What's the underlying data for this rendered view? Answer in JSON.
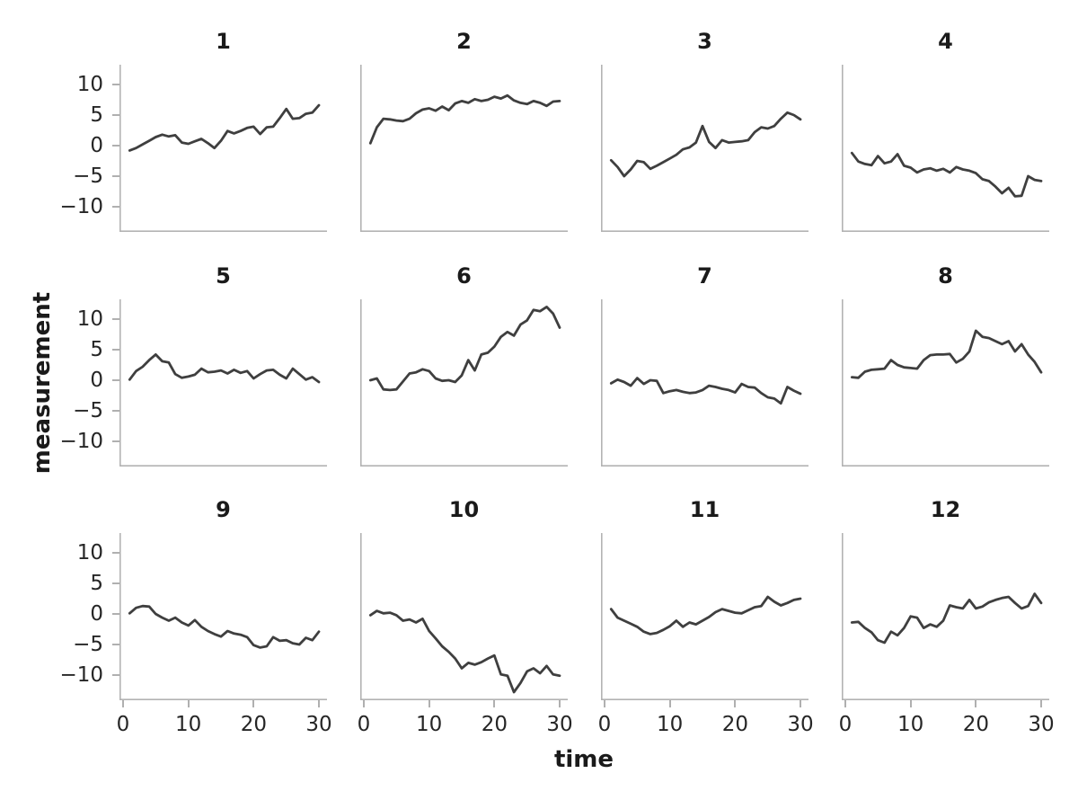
{
  "figure": {
    "xlabel": "time",
    "ylabel": "measurement"
  },
  "chart_data": {
    "type": "line",
    "facet_layout": {
      "rows": 3,
      "cols": 4
    },
    "title": "",
    "xlabel": "time",
    "ylabel": "measurement",
    "x": [
      1,
      2,
      3,
      4,
      5,
      6,
      7,
      8,
      9,
      10,
      11,
      12,
      13,
      14,
      15,
      16,
      17,
      18,
      19,
      20,
      21,
      22,
      23,
      24,
      25,
      26,
      27,
      28,
      29,
      30
    ],
    "xticks": [
      0,
      10,
      20,
      30
    ],
    "yticks": [
      10,
      5,
      0,
      -5,
      -10
    ],
    "xlim": [
      -0.6,
      31.2
    ],
    "ylim": [
      -14.0,
      13.3
    ],
    "grid": false,
    "legend": "none",
    "line_color": "#3f3f3f",
    "spine_color": "#b3b3b3",
    "text_color": "#262626",
    "facets": [
      {
        "title": "1",
        "values": [
          -0.8,
          -0.4,
          0.2,
          0.8,
          1.4,
          1.8,
          1.5,
          1.7,
          0.5,
          0.3,
          0.7,
          1.1,
          0.4,
          -0.4,
          0.8,
          2.4,
          2.0,
          2.4,
          2.9,
          3.1,
          1.9,
          3.0,
          3.1,
          4.5,
          6.0,
          4.4,
          4.5,
          5.2,
          5.4,
          6.6
        ]
      },
      {
        "title": "2",
        "values": [
          0.4,
          3.0,
          4.4,
          4.3,
          4.1,
          4.0,
          4.4,
          5.3,
          5.9,
          6.1,
          5.7,
          6.4,
          5.8,
          6.9,
          7.3,
          7.0,
          7.6,
          7.3,
          7.5,
          8.0,
          7.7,
          8.2,
          7.4,
          7.0,
          6.8,
          7.3,
          7.0,
          6.5,
          7.2,
          7.3
        ]
      },
      {
        "title": "3",
        "values": [
          -2.4,
          -3.5,
          -5.0,
          -3.9,
          -2.5,
          -2.7,
          -3.8,
          -3.3,
          -2.7,
          -2.1,
          -1.5,
          -0.6,
          -0.3,
          0.5,
          3.2,
          0.6,
          -0.4,
          0.9,
          0.5,
          0.6,
          0.7,
          0.9,
          2.2,
          3.0,
          2.8,
          3.2,
          4.4,
          5.4,
          5.0,
          4.3
        ]
      },
      {
        "title": "4",
        "values": [
          -1.2,
          -2.6,
          -3.0,
          -3.2,
          -1.7,
          -2.9,
          -2.6,
          -1.4,
          -3.3,
          -3.6,
          -4.4,
          -3.9,
          -3.7,
          -4.1,
          -3.8,
          -4.4,
          -3.5,
          -3.9,
          -4.1,
          -4.5,
          -5.5,
          -5.8,
          -6.7,
          -7.8,
          -6.9,
          -8.3,
          -8.2,
          -5.0,
          -5.6,
          -5.8
        ]
      },
      {
        "title": "5",
        "values": [
          0.1,
          1.5,
          2.2,
          3.3,
          4.2,
          3.1,
          2.9,
          1.0,
          0.4,
          0.6,
          0.9,
          1.9,
          1.3,
          1.4,
          1.6,
          1.1,
          1.7,
          1.2,
          1.5,
          0.3,
          1.0,
          1.6,
          1.7,
          0.9,
          0.3,
          1.9,
          1.0,
          0.1,
          0.5,
          -0.3
        ]
      },
      {
        "title": "6",
        "values": [
          0.0,
          0.3,
          -1.5,
          -1.6,
          -1.5,
          -0.2,
          1.1,
          1.3,
          1.8,
          1.5,
          0.3,
          -0.1,
          0.0,
          -0.3,
          0.8,
          3.3,
          1.6,
          4.2,
          4.5,
          5.5,
          7.1,
          7.9,
          7.3,
          9.1,
          9.8,
          11.5,
          11.3,
          12.0,
          10.9,
          8.6
        ]
      },
      {
        "title": "7",
        "values": [
          -0.5,
          0.1,
          -0.3,
          -0.9,
          0.35,
          -0.6,
          0.0,
          -0.1,
          -2.1,
          -1.8,
          -1.6,
          -1.9,
          -2.1,
          -2.0,
          -1.6,
          -0.9,
          -1.1,
          -1.4,
          -1.6,
          -2.0,
          -0.6,
          -1.1,
          -1.2,
          -2.1,
          -2.8,
          -3.0,
          -3.8,
          -1.1,
          -1.7,
          -2.2
        ]
      },
      {
        "title": "8",
        "values": [
          0.5,
          0.4,
          1.4,
          1.7,
          1.8,
          1.9,
          3.3,
          2.5,
          2.1,
          2.0,
          1.9,
          3.3,
          4.1,
          4.2,
          4.2,
          4.3,
          2.9,
          3.5,
          4.7,
          8.1,
          7.1,
          6.9,
          6.4,
          5.9,
          6.4,
          4.7,
          5.9,
          4.2,
          3.0,
          1.3
        ]
      },
      {
        "title": "9",
        "values": [
          0.1,
          1.0,
          1.3,
          1.2,
          0.0,
          -0.6,
          -1.1,
          -0.6,
          -1.4,
          -1.9,
          -1.0,
          -2.1,
          -2.8,
          -3.3,
          -3.7,
          -2.8,
          -3.2,
          -3.4,
          -3.8,
          -5.1,
          -5.5,
          -5.3,
          -3.8,
          -4.4,
          -4.3,
          -4.8,
          -5.0,
          -3.9,
          -4.3,
          -2.9
        ]
      },
      {
        "title": "10",
        "values": [
          -0.2,
          0.5,
          0.1,
          0.2,
          -0.2,
          -1.1,
          -0.9,
          -1.4,
          -0.8,
          -2.8,
          -4.0,
          -5.3,
          -6.2,
          -7.3,
          -8.9,
          -8.0,
          -8.3,
          -7.9,
          -7.3,
          -6.8,
          -9.9,
          -10.1,
          -12.8,
          -11.3,
          -9.4,
          -8.9,
          -9.7,
          -8.5,
          -9.9,
          -10.1
        ]
      },
      {
        "title": "11",
        "values": [
          0.8,
          -0.6,
          -1.1,
          -1.6,
          -2.1,
          -2.9,
          -3.3,
          -3.1,
          -2.6,
          -2.0,
          -1.1,
          -2.1,
          -1.4,
          -1.7,
          -1.1,
          -0.5,
          0.3,
          0.8,
          0.5,
          0.2,
          0.1,
          0.6,
          1.1,
          1.3,
          2.8,
          2.0,
          1.4,
          1.8,
          2.3,
          2.5
        ]
      },
      {
        "title": "12",
        "values": [
          -1.4,
          -1.3,
          -2.3,
          -3.0,
          -4.3,
          -4.7,
          -2.9,
          -3.5,
          -2.3,
          -0.4,
          -0.6,
          -2.3,
          -1.7,
          -2.1,
          -1.1,
          1.4,
          1.1,
          0.9,
          2.3,
          0.9,
          1.2,
          1.9,
          2.3,
          2.6,
          2.8,
          1.8,
          0.9,
          1.3,
          3.3,
          1.8
        ]
      }
    ]
  }
}
